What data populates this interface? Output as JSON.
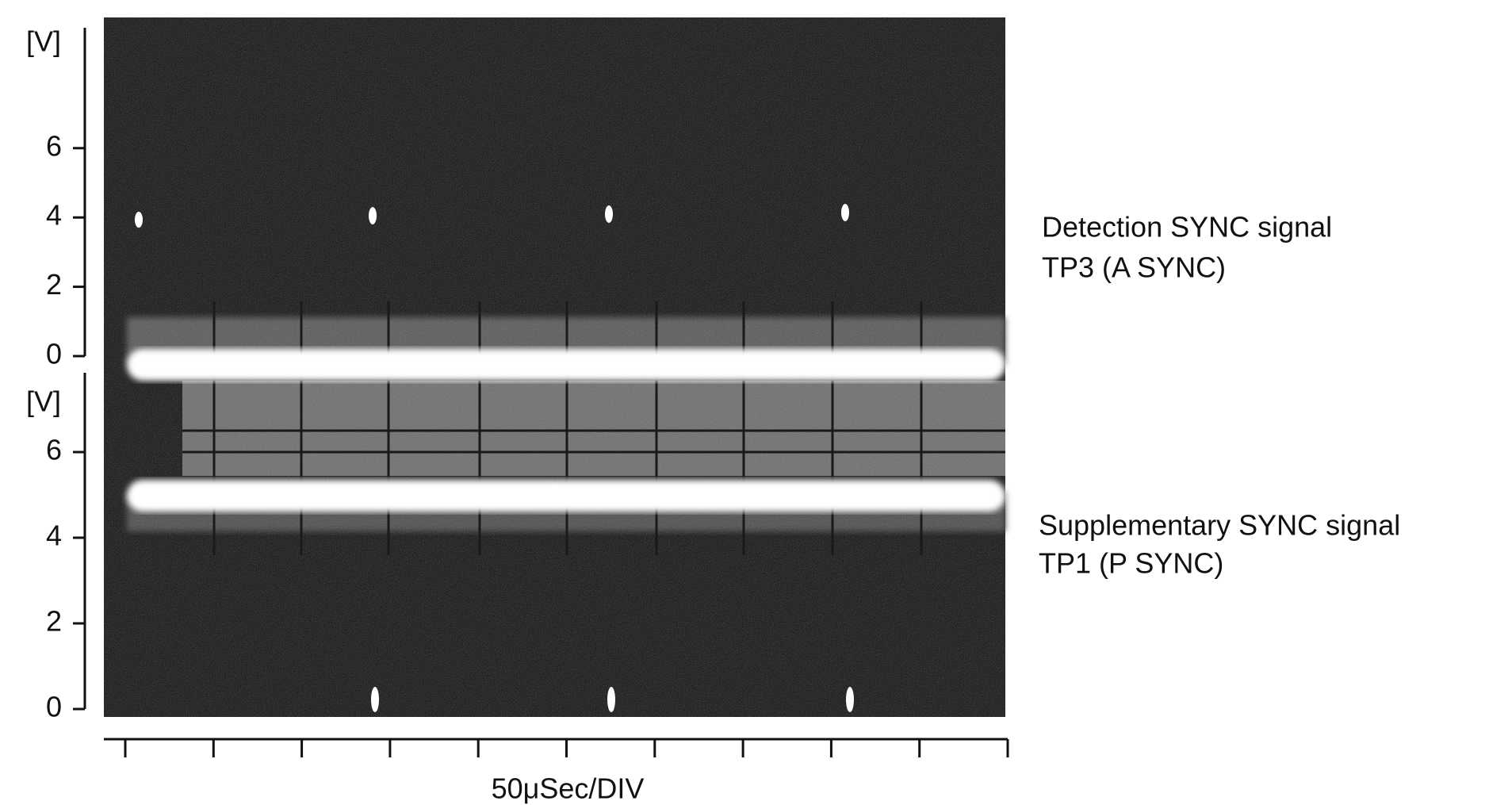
{
  "upper_axis": {
    "unit": "[V]",
    "ticks": [
      0,
      2,
      4,
      6
    ]
  },
  "lower_axis": {
    "unit": "[V]",
    "ticks": [
      0,
      2,
      4,
      6
    ]
  },
  "x_axis": {
    "label": "50μSec/DIV"
  },
  "signals": [
    {
      "name": "Detection SYNC signal",
      "probe": "TP3 (A SYNC)"
    },
    {
      "name": "Supplementary SYNC signal",
      "probe": "TP1 (P SYNC)"
    }
  ]
}
